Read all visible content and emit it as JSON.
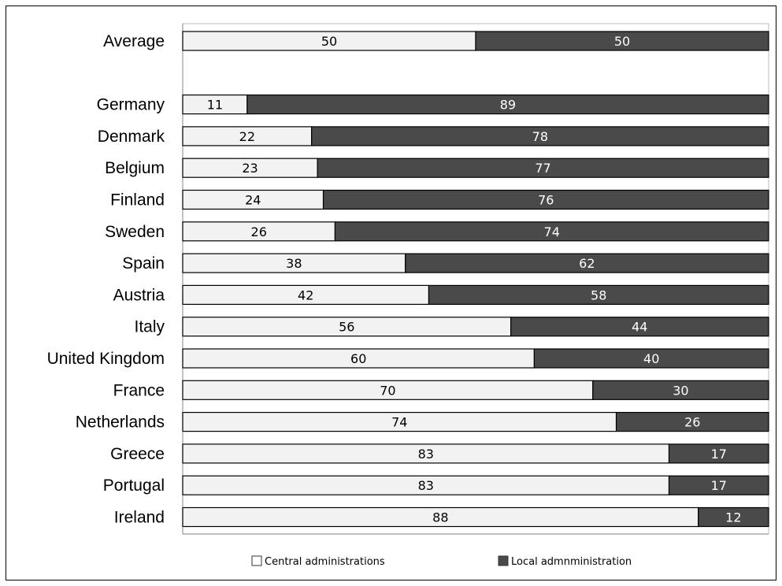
{
  "chart_data": {
    "type": "bar",
    "orientation": "horizontal",
    "stacked": true,
    "categories": [
      "Average",
      "",
      "Germany",
      "Denmark",
      "Belgium",
      "Finland",
      "Sweden",
      "Spain",
      "Austria",
      "Italy",
      "United Kingdom",
      "France",
      "Netherlands",
      "Greece",
      "Portugal",
      "Ireland"
    ],
    "series": [
      {
        "name": "Central administrations",
        "color": "#f2f2f2",
        "label_color": "#000000",
        "values": [
          50,
          null,
          11,
          22,
          23,
          24,
          26,
          38,
          42,
          56,
          60,
          70,
          74,
          83,
          83,
          88
        ]
      },
      {
        "name": "Local admnministration",
        "color": "#4a4a4a",
        "label_color": "#ffffff",
        "values": [
          50,
          null,
          89,
          78,
          77,
          76,
          74,
          62,
          58,
          44,
          40,
          30,
          26,
          17,
          17,
          12
        ]
      }
    ],
    "xlim": [
      0,
      100
    ],
    "grid": false,
    "legend_position": "bottom",
    "title": "",
    "xlabel": "",
    "ylabel": ""
  }
}
